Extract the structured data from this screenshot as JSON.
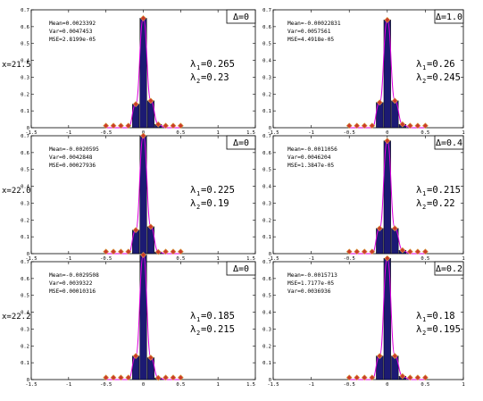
{
  "chart_data": [
    {
      "type": "bar",
      "row_label": "x=21.5",
      "delta_label": "Δ=0",
      "stats": [
        "Mean=0.0023392",
        "Var=0.0047453",
        "MSE=2.8199e-05"
      ],
      "lambda1": "=0.265",
      "lambda2": "=0.23",
      "x": [
        -0.5,
        -0.4,
        -0.3,
        -0.2,
        -0.1,
        0,
        0.1,
        0.2,
        0.3,
        0.4,
        0.5
      ],
      "values": [
        0,
        0,
        0,
        0,
        0.14,
        0.65,
        0.16,
        0.02,
        0,
        0,
        0
      ],
      "xlim": [
        -1.5,
        1.5
      ],
      "ylim": [
        0,
        0.7
      ],
      "xticks": [
        "-1.5",
        "-1",
        "-0.5",
        "0",
        "0.5",
        "1",
        "1.5"
      ],
      "yticks": [
        "0",
        "0.1",
        "0.2",
        "0.3",
        "0.4",
        "0.5",
        "0.6",
        "0.7"
      ],
      "grid": false
    },
    {
      "type": "bar",
      "row_label": "",
      "delta_label": "Δ=1.0",
      "stats": [
        "Mean=-0.00022831",
        "Var=0.0057561",
        "MSE=4.4918e-05"
      ],
      "lambda1": "=0.26",
      "lambda2": "=0.245",
      "x": [
        -0.5,
        -0.4,
        -0.3,
        -0.2,
        -0.1,
        0,
        0.1,
        0.2,
        0.3,
        0.4,
        0.5
      ],
      "values": [
        0,
        0,
        0,
        0,
        0.15,
        0.64,
        0.16,
        0.02,
        0,
        0,
        0
      ],
      "xlim": [
        -1.5,
        1.0
      ],
      "ylim": [
        0,
        0.7
      ],
      "xticks": [
        "-1.5",
        "-1",
        "-0.5",
        "0",
        "0.5",
        "1"
      ],
      "yticks": [
        "0",
        "0.1",
        "0.2",
        "0.3",
        "0.4",
        "0.5",
        "0.6",
        "0.7"
      ],
      "grid": false
    },
    {
      "type": "bar",
      "row_label": "x=22.0",
      "delta_label": "Δ=0",
      "stats": [
        "Mean=-0.0020595",
        "Var=0.0042848",
        "MSE=0.00027936"
      ],
      "lambda1": "=0.225",
      "lambda2": "=0.19",
      "x": [
        -0.5,
        -0.4,
        -0.3,
        -0.2,
        -0.1,
        0,
        0.1,
        0.2,
        0.3,
        0.4,
        0.5
      ],
      "values": [
        0,
        0,
        0,
        0,
        0.14,
        0.7,
        0.16,
        0.01,
        0,
        0,
        0
      ],
      "xlim": [
        -1.5,
        1.5
      ],
      "ylim": [
        0,
        0.7
      ],
      "xticks": [
        "-1.5",
        "-1",
        "-0.5",
        "0",
        "0.5",
        "1",
        "1.5"
      ],
      "yticks": [
        "0",
        "0.1",
        "0.2",
        "0.3",
        "0.4",
        "0.5",
        "0.6",
        "0.7"
      ],
      "grid": false
    },
    {
      "type": "bar",
      "row_label": "",
      "delta_label": "Δ=0.4",
      "stats": [
        "Mean=-0.0011056",
        "Var=0.0046204",
        "MSE=1.3847e-05"
      ],
      "lambda1": "=0.215",
      "lambda2": "=0.22",
      "x": [
        -0.5,
        -0.4,
        -0.3,
        -0.2,
        -0.1,
        0,
        0.1,
        0.2,
        0.3,
        0.4,
        0.5
      ],
      "values": [
        0,
        0,
        0,
        0,
        0.15,
        0.67,
        0.15,
        0.02,
        0,
        0,
        0
      ],
      "xlim": [
        -1.5,
        1.0
      ],
      "ylim": [
        0,
        0.7
      ],
      "xticks": [
        "-1.5",
        "-1",
        "-0.5",
        "0",
        "0.5",
        "1"
      ],
      "yticks": [
        "0",
        "0.1",
        "0.2",
        "0.3",
        "0.4",
        "0.5",
        "0.6",
        "0.7"
      ],
      "grid": false
    },
    {
      "type": "bar",
      "row_label": "x=22.2",
      "delta_label": "Δ=0",
      "stats": [
        "Mean=-0.0029508",
        "Var=0.0039322",
        "MSE=0.00010316"
      ],
      "lambda1": "=0.185",
      "lambda2": "=0.215",
      "x": [
        -0.5,
        -0.4,
        -0.3,
        -0.2,
        -0.1,
        0,
        0.1,
        0.2,
        0.3,
        0.4,
        0.5
      ],
      "values": [
        0,
        0,
        0,
        0,
        0.14,
        0.74,
        0.13,
        0.01,
        0,
        0,
        0
      ],
      "xlim": [
        -1.5,
        1.5
      ],
      "ylim": [
        0,
        0.7
      ],
      "xticks": [
        "-1.5",
        "-1",
        "-0.5",
        "0",
        "0.5",
        "1",
        "1.5"
      ],
      "yticks": [
        "0",
        "0.1",
        "0.2",
        "0.3",
        "0.4",
        "0.5",
        "0.6",
        "0.7"
      ],
      "grid": false
    },
    {
      "type": "bar",
      "row_label": "",
      "delta_label": "Δ=0.2",
      "stats": [
        "Mean=-0.0015713",
        "MSE=1.7177e-05",
        "Var=0.0036936"
      ],
      "lambda1": "=0.18",
      "lambda2": "=0.195",
      "x": [
        -0.5,
        -0.4,
        -0.3,
        -0.2,
        -0.1,
        0,
        0.1,
        0.2,
        0.3,
        0.4,
        0.5
      ],
      "values": [
        0,
        0,
        0,
        0,
        0.14,
        0.72,
        0.14,
        0.02,
        0,
        0,
        0
      ],
      "xlim": [
        -1.5,
        1.0
      ],
      "ylim": [
        0,
        0.7
      ],
      "xticks": [
        "-1.5",
        "-1",
        "-0.5",
        "0",
        "0.5",
        "1"
      ],
      "yticks": [
        "0",
        "0.1",
        "0.2",
        "0.3",
        "0.4",
        "0.5",
        "0.6",
        "0.7"
      ],
      "grid": false
    }
  ],
  "colors": {
    "bar_fill": "#1c1a73",
    "fit_curve": "#dd00dd",
    "marker_fill": "#cc3a2a",
    "marker_edge": "#d9a54a",
    "axis": "#000000"
  }
}
